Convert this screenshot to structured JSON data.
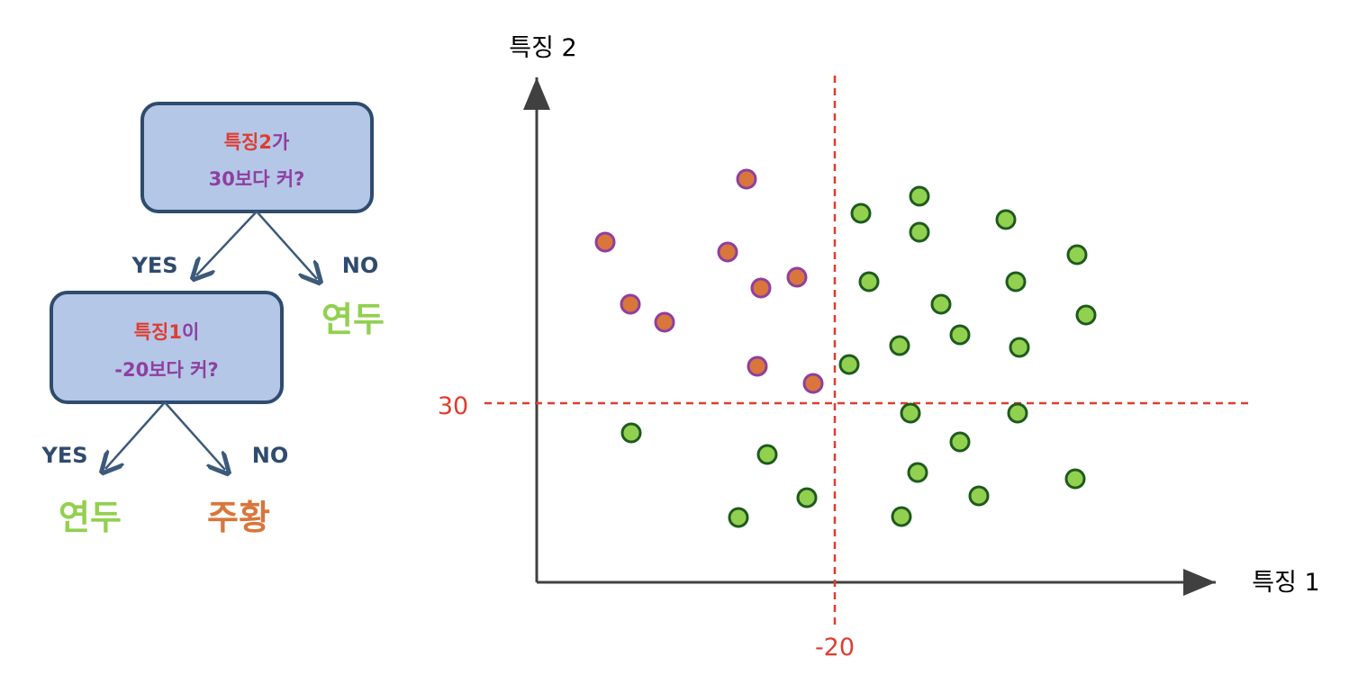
{
  "tree": {
    "root": {
      "feature": "특징2",
      "suffix": "가",
      "condition": "30보다 커?"
    },
    "root_yes": "YES",
    "root_no": "NO",
    "root_no_leaf": "연두",
    "child": {
      "feature": "특징1",
      "suffix": "이",
      "condition": "-20보다 커?"
    },
    "child_yes": "YES",
    "child_no": "NO",
    "child_yes_leaf": "연두",
    "child_no_leaf": "주황"
  },
  "scatter": {
    "x_axis_label": "특징 1",
    "y_axis_label": "특징 2",
    "x_threshold_label": "-20",
    "y_threshold_label": "30"
  },
  "colors": {
    "node_fill": "#b4c7e7",
    "node_stroke": "#2f4b6e",
    "arrow": "#3d5a7a",
    "feature_red": "#e03c31",
    "condition_purple": "#8e3fa0",
    "yes_no_text": "#2f4b6e",
    "green_leaf": "#92d050",
    "orange_leaf": "#d9763b",
    "threshold": "#e03c31",
    "axis": "#404040",
    "green_point_fill": "#92d050",
    "green_point_stroke": "#1e5a1e",
    "orange_point_fill": "#d9763b",
    "orange_point_stroke": "#8e3fa0"
  }
}
